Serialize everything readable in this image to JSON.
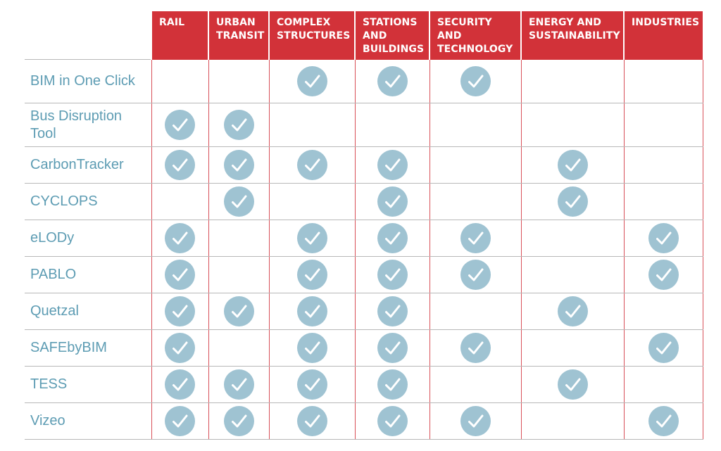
{
  "categories": [
    "RAIL",
    "URBAN TRANSIT",
    "COMPLEX STRUCTURES",
    "STATIONS AND BUILDINGS",
    "SECURITY AND TECHNOLOGY",
    "ENERGY AND SUSTAINABILITY",
    "INDUSTRIES"
  ],
  "tools": [
    {
      "name": "BIM in One Click",
      "checks": [
        false,
        false,
        true,
        true,
        true,
        false,
        false
      ]
    },
    {
      "name": "Bus Disruption Tool",
      "checks": [
        true,
        true,
        false,
        false,
        false,
        false,
        false
      ]
    },
    {
      "name": "CarbonTracker",
      "checks": [
        true,
        true,
        true,
        true,
        false,
        true,
        false
      ]
    },
    {
      "name": "CYCLOPS",
      "checks": [
        false,
        true,
        false,
        true,
        false,
        true,
        false
      ]
    },
    {
      "name": "eLODy",
      "checks": [
        true,
        false,
        true,
        true,
        true,
        false,
        true
      ]
    },
    {
      "name": "PABLO",
      "checks": [
        true,
        false,
        true,
        true,
        true,
        false,
        true
      ]
    },
    {
      "name": "Quetzal",
      "checks": [
        true,
        true,
        true,
        true,
        false,
        true,
        false
      ]
    },
    {
      "name": "SAFEbyBIM",
      "checks": [
        true,
        false,
        true,
        true,
        true,
        false,
        true
      ]
    },
    {
      "name": "TESS",
      "checks": [
        true,
        true,
        true,
        true,
        false,
        true,
        false
      ]
    },
    {
      "name": "Vizeo",
      "checks": [
        true,
        true,
        true,
        true,
        true,
        false,
        true
      ]
    }
  ],
  "colors": {
    "header_red": "#d23239",
    "name_blue": "#5d9cb3",
    "check_circle": "#9fc3d2",
    "check_mark": "#ffffff",
    "grid_line": "#b8b8b8"
  },
  "icons": {
    "check": "check-circle-icon"
  }
}
